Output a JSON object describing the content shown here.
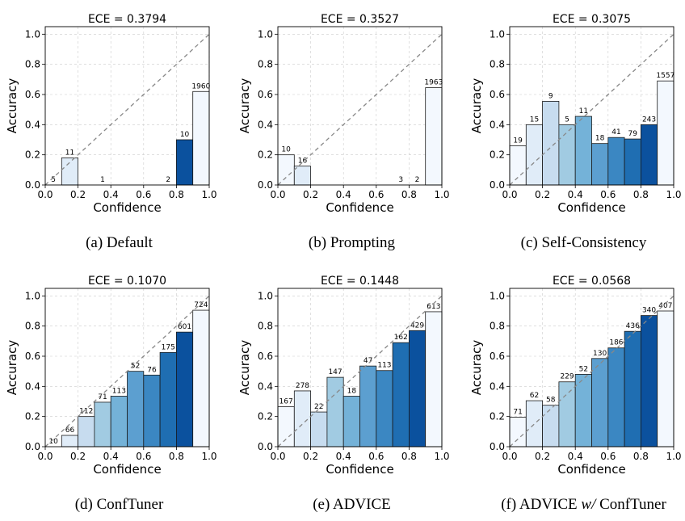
{
  "chart_data": [
    {
      "type": "bar",
      "title": "ECE = 0.3794",
      "caption": "(a) Default",
      "xlabel": "Confidence",
      "ylabel": "Accuracy",
      "xlim": [
        0,
        1
      ],
      "ylim": [
        0,
        1.05
      ],
      "ticks": [
        "0.0",
        "0.2",
        "0.4",
        "0.6",
        "0.8",
        "1.0"
      ],
      "grid": true,
      "bin_width": 0.1,
      "bins": [
        {
          "x": 0.0,
          "acc": 0.0,
          "count": "5"
        },
        {
          "x": 0.1,
          "acc": 0.18,
          "count": "11"
        },
        {
          "x": 0.3,
          "acc": 0.0,
          "count": "1"
        },
        {
          "x": 0.7,
          "acc": 0.0,
          "count": "2"
        },
        {
          "x": 0.8,
          "acc": 0.3,
          "count": "10"
        },
        {
          "x": 0.9,
          "acc": 0.62,
          "count": "1960"
        }
      ]
    },
    {
      "type": "bar",
      "title": "ECE = 0.3527",
      "caption": "(b) Prompting",
      "xlabel": "Confidence",
      "ylabel": "Accuracy",
      "xlim": [
        0,
        1
      ],
      "ylim": [
        0,
        1.05
      ],
      "ticks": [
        "0.0",
        "0.2",
        "0.4",
        "0.6",
        "0.8",
        "1.0"
      ],
      "grid": true,
      "bin_width": 0.1,
      "bins": [
        {
          "x": 0.0,
          "acc": 0.2,
          "count": "10"
        },
        {
          "x": 0.1,
          "acc": 0.125,
          "count": "16"
        },
        {
          "x": 0.7,
          "acc": 0.0,
          "count": "3"
        },
        {
          "x": 0.8,
          "acc": 0.0,
          "count": "2"
        },
        {
          "x": 0.9,
          "acc": 0.645,
          "count": "1963"
        }
      ]
    },
    {
      "type": "bar",
      "title": "ECE = 0.3075",
      "caption": "(c) Self-Consistency",
      "xlabel": "Confidence",
      "ylabel": "Accuracy",
      "xlim": [
        0,
        1
      ],
      "ylim": [
        0,
        1.05
      ],
      "ticks": [
        "0.0",
        "0.2",
        "0.4",
        "0.6",
        "0.8",
        "1.0"
      ],
      "grid": true,
      "bin_width": 0.1,
      "bins": [
        {
          "x": 0.0,
          "acc": 0.26,
          "count": "19"
        },
        {
          "x": 0.1,
          "acc": 0.4,
          "count": "15"
        },
        {
          "x": 0.2,
          "acc": 0.555,
          "count": "9"
        },
        {
          "x": 0.3,
          "acc": 0.4,
          "count": "5"
        },
        {
          "x": 0.4,
          "acc": 0.455,
          "count": "11"
        },
        {
          "x": 0.5,
          "acc": 0.275,
          "count": "18"
        },
        {
          "x": 0.6,
          "acc": 0.315,
          "count": "41"
        },
        {
          "x": 0.7,
          "acc": 0.305,
          "count": "79"
        },
        {
          "x": 0.8,
          "acc": 0.4,
          "count": "243"
        },
        {
          "x": 0.9,
          "acc": 0.69,
          "count": "1557"
        }
      ]
    },
    {
      "type": "bar",
      "title": "ECE = 0.1070",
      "caption": "(d) ConfTuner",
      "xlabel": "Confidence",
      "ylabel": "Accuracy",
      "xlim": [
        0,
        1
      ],
      "ylim": [
        0,
        1.05
      ],
      "ticks": [
        "0.0",
        "0.2",
        "0.4",
        "0.6",
        "0.8",
        "1.0"
      ],
      "grid": true,
      "bin_width": 0.1,
      "bins": [
        {
          "x": 0.0,
          "acc": 0.0,
          "count": "10"
        },
        {
          "x": 0.1,
          "acc": 0.075,
          "count": "66"
        },
        {
          "x": 0.2,
          "acc": 0.2,
          "count": "112"
        },
        {
          "x": 0.3,
          "acc": 0.295,
          "count": "71"
        },
        {
          "x": 0.4,
          "acc": 0.335,
          "count": "113"
        },
        {
          "x": 0.5,
          "acc": 0.5,
          "count": "52"
        },
        {
          "x": 0.6,
          "acc": 0.475,
          "count": "76"
        },
        {
          "x": 0.7,
          "acc": 0.625,
          "count": "175"
        },
        {
          "x": 0.8,
          "acc": 0.76,
          "count": "601"
        },
        {
          "x": 0.9,
          "acc": 0.905,
          "count": "724"
        }
      ]
    },
    {
      "type": "bar",
      "title": "ECE = 0.1448",
      "caption": "(e) ADVICE",
      "xlabel": "Confidence",
      "ylabel": "Accuracy",
      "xlim": [
        0,
        1
      ],
      "ylim": [
        0,
        1.05
      ],
      "ticks": [
        "0.0",
        "0.2",
        "0.4",
        "0.6",
        "0.8",
        "1.0"
      ],
      "grid": true,
      "bin_width": 0.1,
      "bins": [
        {
          "x": 0.0,
          "acc": 0.265,
          "count": "167"
        },
        {
          "x": 0.1,
          "acc": 0.37,
          "count": "278"
        },
        {
          "x": 0.2,
          "acc": 0.23,
          "count": "22"
        },
        {
          "x": 0.3,
          "acc": 0.46,
          "count": "147"
        },
        {
          "x": 0.4,
          "acc": 0.335,
          "count": "18"
        },
        {
          "x": 0.5,
          "acc": 0.535,
          "count": "47"
        },
        {
          "x": 0.6,
          "acc": 0.505,
          "count": "113"
        },
        {
          "x": 0.7,
          "acc": 0.69,
          "count": "162"
        },
        {
          "x": 0.8,
          "acc": 0.77,
          "count": "429"
        },
        {
          "x": 0.9,
          "acc": 0.895,
          "count": "613"
        }
      ]
    },
    {
      "type": "bar",
      "title": "ECE = 0.0568",
      "caption_prefix": "(f) ADVICE ",
      "caption_italic": "w/",
      "caption_suffix": " ConfTuner",
      "xlabel": "Confidence",
      "ylabel": "Accuracy",
      "xlim": [
        0,
        1
      ],
      "ylim": [
        0,
        1.05
      ],
      "ticks": [
        "0.0",
        "0.2",
        "0.4",
        "0.6",
        "0.8",
        "1.0"
      ],
      "grid": true,
      "bin_width": 0.1,
      "bins": [
        {
          "x": 0.0,
          "acc": 0.195,
          "count": "71"
        },
        {
          "x": 0.1,
          "acc": 0.305,
          "count": "62"
        },
        {
          "x": 0.2,
          "acc": 0.275,
          "count": "58"
        },
        {
          "x": 0.3,
          "acc": 0.43,
          "count": "229"
        },
        {
          "x": 0.4,
          "acc": 0.48,
          "count": "52"
        },
        {
          "x": 0.5,
          "acc": 0.585,
          "count": "130"
        },
        {
          "x": 0.6,
          "acc": 0.655,
          "count": "186"
        },
        {
          "x": 0.7,
          "acc": 0.765,
          "count": "436"
        },
        {
          "x": 0.8,
          "acc": 0.87,
          "count": "340"
        },
        {
          "x": 0.9,
          "acc": 0.9,
          "count": "407"
        }
      ]
    }
  ],
  "colors": [
    "#f3f8fe",
    "#e0ecf8",
    "#c7dcef",
    "#a1cbe2",
    "#74b2d8",
    "#5c9fd0",
    "#3b87c2",
    "#1f6eb2",
    "#0b519e",
    "#f3f8fe"
  ],
  "bar_outline": "#1a1a1a",
  "diagonal_color": "#888888"
}
